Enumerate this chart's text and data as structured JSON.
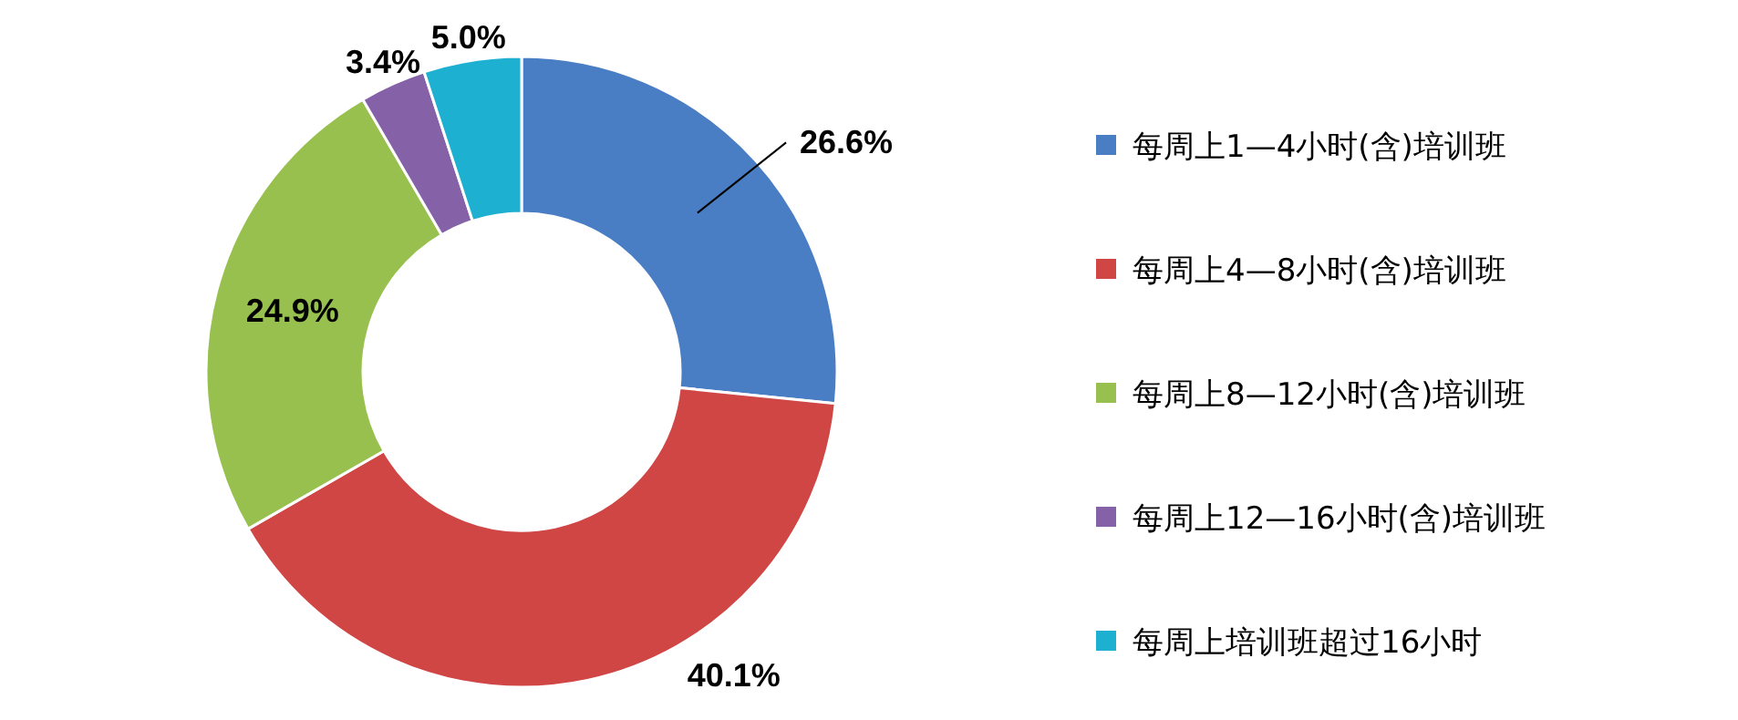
{
  "chart_data": {
    "type": "donut",
    "categories": [
      "每周上1—4小时(含)培训班",
      "每周上4—8小时(含)培训班",
      "每周上8—12小时(含)培训班",
      "每周上12—16小时(含)培训班",
      "每周上培训班超过16小时"
    ],
    "values": [
      26.6,
      40.1,
      24.9,
      3.4,
      5.0
    ],
    "colors": [
      "#4a7ec4",
      "#cf4645",
      "#98c04e",
      "#8562a8",
      "#1eb0d0"
    ],
    "value_labels": [
      "26.6%",
      "40.1%",
      "24.9%",
      "3.4%",
      "5.0%"
    ],
    "legend": "right"
  }
}
